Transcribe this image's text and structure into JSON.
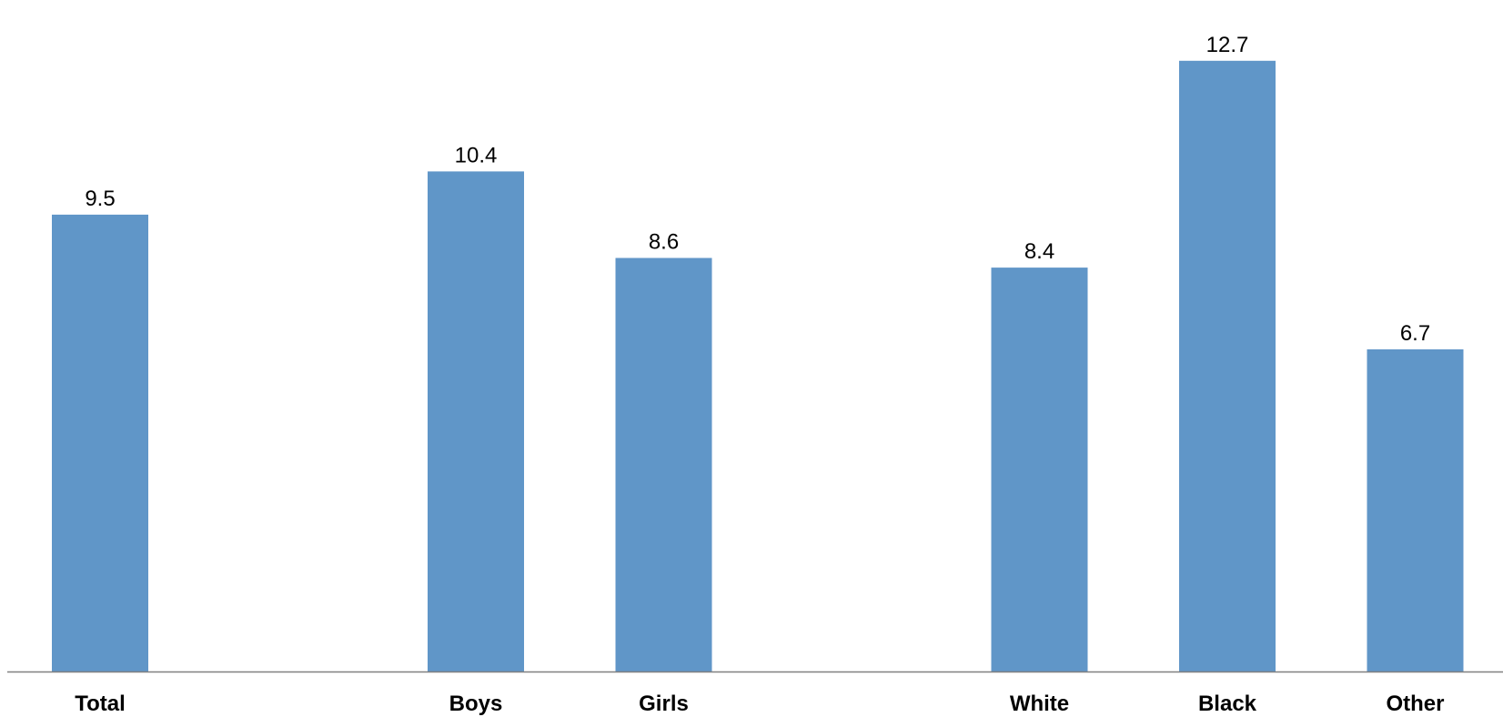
{
  "chart_data": {
    "type": "bar",
    "categories": [
      "Total",
      "Boys",
      "Girls",
      "White",
      "Black",
      "Other"
    ],
    "groups": [
      [
        "Total"
      ],
      [
        "Boys",
        "Girls"
      ],
      [
        "White",
        "Black",
        "Other"
      ]
    ],
    "values": [
      9.5,
      10.4,
      8.6,
      8.4,
      12.7,
      6.7
    ],
    "value_labels": [
      "9.5",
      "10.4",
      "8.6",
      "8.4",
      "12.7",
      "6.7"
    ],
    "title": "",
    "xlabel": "",
    "ylabel": "",
    "ylim": [
      0,
      13.5
    ],
    "grid": false,
    "legend": "none",
    "bar_color": "#6096C8",
    "axis_color": "#808080"
  }
}
